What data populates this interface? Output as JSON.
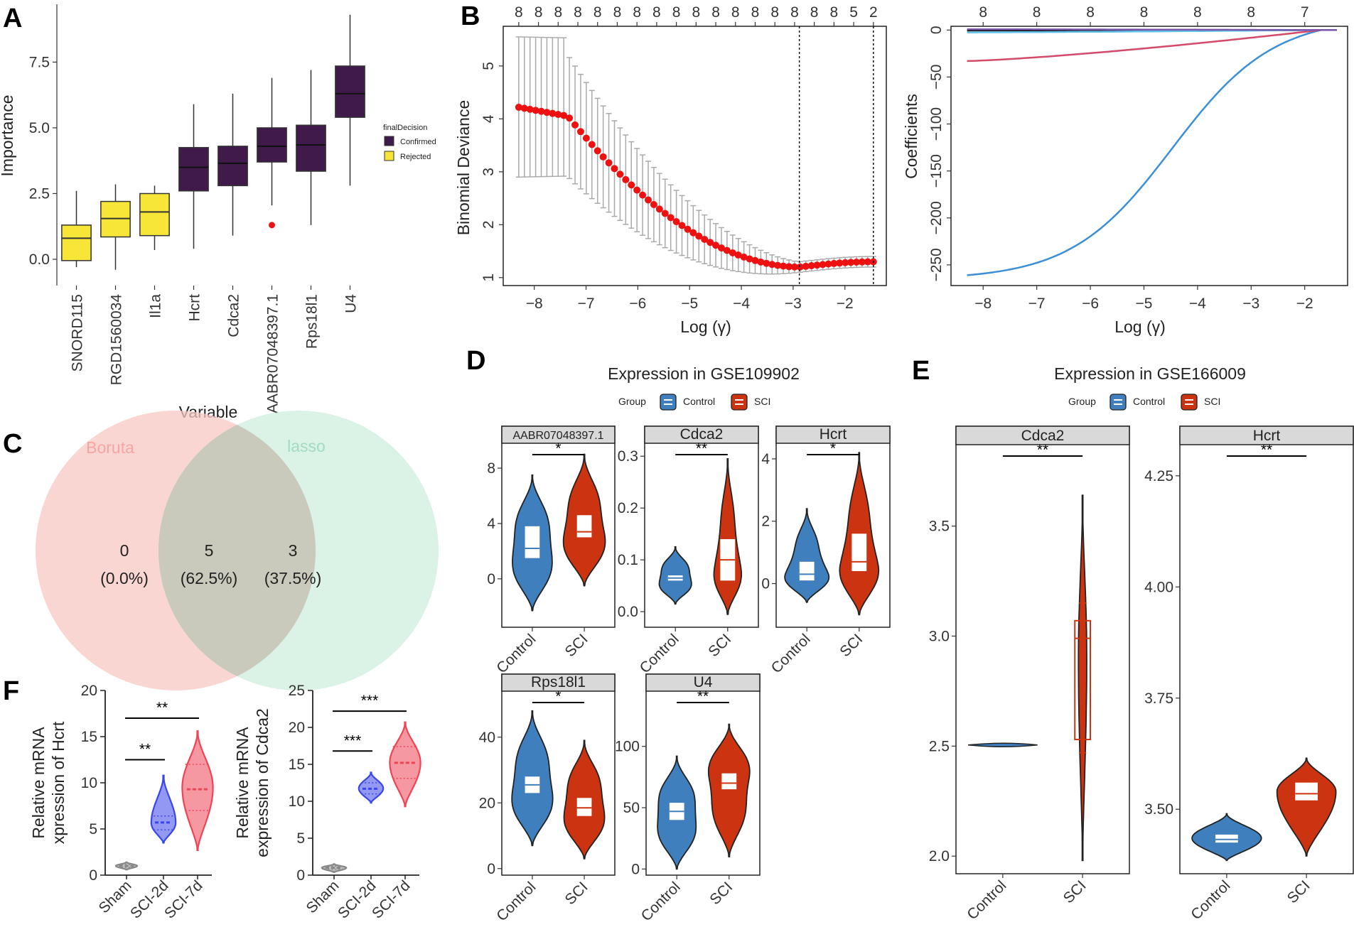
{
  "figure": {
    "panel_letters": [
      "A",
      "B",
      "C",
      "D",
      "E",
      "F"
    ]
  },
  "colors": {
    "confirmed": "#3f1a4a",
    "rejected": "#f7e637",
    "control": "#3f7fbd",
    "sci": "#cc3311",
    "deviance_point": "#ee1111",
    "errorbar": "#aaaaaa",
    "boruta": "#f8c8c4",
    "lasso": "#cfeedd",
    "f_sham": "#888888",
    "f_2d": "#3a46e8",
    "f_7d": "#ee4455",
    "coef_blue": "#3a8fd8",
    "coef_pink": "#d34a6a",
    "coef_black": "#111111",
    "coef_cyan": "#60c0e8",
    "coef_purple": "#7a55a8"
  },
  "chart_data": [
    {
      "id": "A",
      "type": "box",
      "xlabel": "Variable",
      "ylabel": "Importance",
      "ylim": [
        -1.0,
        9.7
      ],
      "yticks": [
        "0.0",
        "2.5",
        "5.0",
        "7.5"
      ],
      "ytick_values": [
        0.0,
        2.5,
        5.0,
        7.5
      ],
      "legend_title": "finalDecision",
      "legend": [
        "Confirmed",
        "Rejected"
      ],
      "boxes": [
        {
          "label": "SNORD115",
          "decision": "Rejected",
          "min": -0.3,
          "q1": -0.05,
          "median": 0.8,
          "q3": 1.3,
          "max": 2.6,
          "outliers": []
        },
        {
          "label": "RGD1560034",
          "decision": "Rejected",
          "min": -0.4,
          "q1": 0.85,
          "median": 1.55,
          "q3": 2.2,
          "max": 2.85,
          "outliers": []
        },
        {
          "label": "Il1a",
          "decision": "Rejected",
          "min": 0.35,
          "q1": 0.9,
          "median": 1.8,
          "q3": 2.5,
          "max": 2.8,
          "outliers": []
        },
        {
          "label": "Hcrt",
          "decision": "Confirmed",
          "min": 0.4,
          "q1": 2.6,
          "median": 3.5,
          "q3": 4.25,
          "max": 5.9,
          "outliers": []
        },
        {
          "label": "Cdca2",
          "decision": "Confirmed",
          "min": 0.9,
          "q1": 2.8,
          "median": 3.65,
          "q3": 4.3,
          "max": 6.3,
          "outliers": []
        },
        {
          "label": "AABR07048397.1",
          "decision": "Confirmed",
          "min": 2.05,
          "q1": 3.7,
          "median": 4.3,
          "q3": 5.0,
          "max": 6.9,
          "outliers": [
            1.3
          ]
        },
        {
          "label": "Rps18l1",
          "decision": "Confirmed",
          "min": 1.3,
          "q1": 3.35,
          "median": 4.35,
          "q3": 5.1,
          "max": 7.2,
          "outliers": []
        },
        {
          "label": "U4",
          "decision": "Confirmed",
          "min": 2.8,
          "q1": 5.4,
          "median": 6.3,
          "q3": 7.35,
          "max": 9.3,
          "outliers": []
        }
      ]
    },
    {
      "id": "B-left",
      "type": "line",
      "xlabel": "Log (γ)",
      "ylabel": "Binomial Deviance",
      "xlim": [
        -8.6,
        -1.2
      ],
      "ylim": [
        0.85,
        5.75
      ],
      "xticks": [
        "−8",
        "−7",
        "−6",
        "−5",
        "−4",
        "−3",
        "−2"
      ],
      "xtick_values": [
        -8,
        -7,
        -6,
        -5,
        -4,
        -3,
        -2
      ],
      "yticks": [
        "1",
        "2",
        "3",
        "4",
        "5"
      ],
      "ytick_values": [
        1,
        2,
        3,
        4,
        5
      ],
      "top_ticks": [
        "8",
        "8",
        "8",
        "8",
        "8",
        "8",
        "8",
        "8",
        "8",
        "8",
        "8",
        "8",
        "8",
        "8",
        "8",
        "8",
        "8",
        "5",
        "2"
      ],
      "vlines": [
        -2.88,
        -1.45
      ],
      "curve": {
        "x_start": -8.3,
        "x_end": -1.45,
        "n": 64,
        "plateau_end": -7.35,
        "plateau_start_value": 4.22,
        "plateau_end_value": 4.05,
        "min_x": -2.88,
        "min_value": 1.2,
        "end_value": 1.3,
        "err_start_upper": 5.55,
        "err_start_lower": 2.9
      }
    },
    {
      "id": "B-right",
      "type": "line",
      "xlabel": "Log (γ)",
      "ylabel": "Coefficients",
      "xlim": [
        -8.6,
        -1.2
      ],
      "ylim": [
        -272,
        4
      ],
      "xticks": [
        "−8",
        "−7",
        "−6",
        "−5",
        "−4",
        "−3",
        "−2"
      ],
      "xtick_values": [
        -8,
        -7,
        -6,
        -5,
        -4,
        -3,
        -2
      ],
      "yticks": [
        "0",
        "−50",
        "−100",
        "−150",
        "−200",
        "−250"
      ],
      "ytick_values": [
        0,
        -50,
        -100,
        -150,
        -200,
        -250
      ],
      "top_ticks": [
        "8",
        "8",
        "8",
        "8",
        "8",
        "8",
        "7"
      ],
      "top_tick_values": [
        -8,
        -7,
        -6,
        -5,
        -4,
        -3,
        -2
      ],
      "series": [
        {
          "name": "blue",
          "start": -261,
          "shape": "sigmoid"
        },
        {
          "name": "pink",
          "start": -33,
          "shape": "linear"
        },
        {
          "name": "black",
          "start": -0.5,
          "shape": "linear"
        },
        {
          "name": "cyan",
          "start": -2.5,
          "shape": "linear"
        },
        {
          "name": "purple",
          "start": 0.8,
          "shape": "linear"
        }
      ]
    },
    {
      "id": "C",
      "type": "venn",
      "sets": [
        {
          "name": "Boruta",
          "only_count": "0",
          "only_pct": "(0.0%)"
        },
        {
          "name": "lasso",
          "only_count": "3",
          "only_pct": "(37.5%)"
        }
      ],
      "intersection": {
        "count": "5",
        "pct": "(62.5%)"
      }
    },
    {
      "id": "D",
      "type": "violin",
      "title": "Expression in GSE109902",
      "legend_title": "Group",
      "legend": [
        "Control",
        "SCI"
      ],
      "categories": [
        "Control",
        "SCI"
      ],
      "facets": [
        {
          "name": "AABR07048397.1",
          "sig": "*",
          "ylim": [
            -3.5,
            9.8
          ],
          "yticks": [
            "0",
            "4",
            "8"
          ],
          "ytick_values": [
            0,
            4,
            8
          ],
          "groups": [
            {
              "min": -2.3,
              "max": 7.5,
              "mode": 2.2,
              "q1": 1.5,
              "median": 2.2,
              "q3": 3.8,
              "width": 1.0
            },
            {
              "min": -0.5,
              "max": 9.0,
              "mode": 3.5,
              "q1": 3.0,
              "median": 3.4,
              "q3": 4.6,
              "width": 1.0
            }
          ]
        },
        {
          "name": "Cdca2",
          "sig": "**",
          "ylim": [
            -0.03,
            0.325
          ],
          "yticks": [
            "0.0",
            "0.1",
            "0.2",
            "0.3"
          ],
          "ytick_values": [
            0.0,
            0.1,
            0.2,
            0.3
          ],
          "groups": [
            {
              "min": 0.015,
              "max": 0.125,
              "mode": 0.065,
              "q1": 0.06,
              "median": 0.065,
              "q3": 0.07,
              "width": 0.8
            },
            {
              "min": -0.005,
              "max": 0.295,
              "mode": 0.08,
              "q1": 0.06,
              "median": 0.1,
              "q3": 0.14,
              "width": 0.55
            }
          ]
        },
        {
          "name": "Hcrt",
          "sig": "*",
          "ylim": [
            -1.4,
            4.5
          ],
          "yticks": [
            "0",
            "2",
            "4"
          ],
          "ytick_values": [
            0,
            2,
            4
          ],
          "groups": [
            {
              "min": -0.6,
              "max": 2.4,
              "mode": 0.3,
              "q1": 0.1,
              "median": 0.3,
              "q3": 0.7,
              "width": 0.9
            },
            {
              "min": -1.0,
              "max": 4.2,
              "mode": 0.6,
              "q1": 0.4,
              "median": 0.7,
              "q3": 1.6,
              "width": 0.8
            }
          ]
        },
        {
          "name": "Rps18l1",
          "sig": "*",
          "ylim": [
            -2,
            54
          ],
          "yticks": [
            "0",
            "20",
            "40"
          ],
          "ytick_values": [
            0,
            20,
            40
          ],
          "groups": [
            {
              "min": 7,
              "max": 48,
              "mode": 25,
              "q1": 23,
              "median": 25.5,
              "q3": 28,
              "width": 1.0
            },
            {
              "min": 3,
              "max": 39,
              "mode": 19,
              "q1": 16,
              "median": 18.5,
              "q3": 21.5,
              "width": 1.0
            }
          ]
        },
        {
          "name": "U4",
          "sig": "**",
          "ylim": [
            -5,
            145
          ],
          "yticks": [
            "0",
            "50",
            "100"
          ],
          "ytick_values": [
            0,
            50,
            100
          ],
          "groups": [
            {
              "min": 0,
              "max": 92,
              "mode": 45,
              "q1": 40,
              "median": 47,
              "q3": 54,
              "width": 1.0
            },
            {
              "min": 10,
              "max": 118,
              "mode": 72,
              "q1": 65,
              "median": 70,
              "q3": 78,
              "width": 1.0
            }
          ]
        }
      ]
    },
    {
      "id": "E",
      "type": "violin",
      "title": "Expression in GSE166009",
      "legend_title": "Group",
      "legend": [
        "Control",
        "SCI"
      ],
      "categories": [
        "Control",
        "SCI"
      ],
      "facets": [
        {
          "name": "Cdca2",
          "sig": "**",
          "ylim": [
            1.92,
            3.87
          ],
          "yticks": [
            "2.0",
            "2.5",
            "3.0",
            "3.5"
          ],
          "ytick_values": [
            2.0,
            2.5,
            3.0,
            3.5
          ],
          "groups": [
            {
              "min": 2.48,
              "max": 2.53,
              "mode": 2.505,
              "q1": 2.505,
              "median": 2.505,
              "q3": 2.505,
              "width": 1.0,
              "flat": true
            },
            {
              "min": 1.98,
              "max": 3.64,
              "mode": 2.9,
              "q1": 2.53,
              "median": 2.99,
              "q3": 3.07,
              "width": 0.12,
              "open_box": true,
              "whisker_min": 2.47,
              "whisker_max": 3.15
            }
          ]
        },
        {
          "name": "Hcrt",
          "sig": "**",
          "ylim": [
            3.355,
            4.32
          ],
          "yticks": [
            "3.50",
            "3.75",
            "4.00",
            "4.25"
          ],
          "ytick_values": [
            3.5,
            3.75,
            4.0,
            4.25
          ],
          "groups": [
            {
              "min": 3.385,
              "max": 3.49,
              "mode": 3.435,
              "q1": 3.425,
              "median": 3.432,
              "q3": 3.443,
              "width": 1.0
            },
            {
              "min": 3.395,
              "max": 3.615,
              "mode": 3.54,
              "q1": 3.52,
              "median": 3.535,
              "q3": 3.56,
              "width": 0.85
            }
          ]
        }
      ]
    },
    {
      "id": "F",
      "type": "violin",
      "panels": [
        {
          "ylabel_line1": "Relative mRNA",
          "ylabel_line2": "xpression of Hcrt",
          "ylim": [
            0,
            20
          ],
          "yticks": [
            "0",
            "5",
            "10",
            "15",
            "20"
          ],
          "ytick_values": [
            0,
            5,
            10,
            15,
            20
          ],
          "categories": [
            "Sham",
            "SCI-2d",
            "SCI-7d"
          ],
          "groups": [
            {
              "min": 0.6,
              "max": 1.4,
              "median": 1.0,
              "q1": 0.85,
              "q3": 1.15,
              "width": 0.5
            },
            {
              "min": 3.5,
              "max": 10.8,
              "median": 5.7,
              "q1": 4.9,
              "q3": 6.4,
              "width": 0.6
            },
            {
              "min": 2.7,
              "max": 15.6,
              "median": 9.3,
              "q1": 7.0,
              "q3": 12.0,
              "width": 0.8
            }
          ],
          "sig": [
            {
              "from": 0,
              "to": 1,
              "label": "**",
              "y": 12.5
            },
            {
              "from": 0,
              "to": 2,
              "label": "**",
              "y": 17.0
            }
          ]
        },
        {
          "ylabel_line1": "Relative mRNA",
          "ylabel_line2": "expression of Cdca2",
          "ylim": [
            0,
            25
          ],
          "yticks": [
            "0",
            "5",
            "10",
            "15",
            "20",
            "25"
          ],
          "ytick_values": [
            0,
            5,
            10,
            15,
            20,
            25
          ],
          "categories": [
            "Sham",
            "SCI-2d",
            "SCI-7d"
          ],
          "groups": [
            {
              "min": 0.4,
              "max": 1.5,
              "median": 1.0,
              "q1": 0.8,
              "q3": 1.2,
              "width": 0.6
            },
            {
              "min": 9.8,
              "max": 13.9,
              "median": 11.7,
              "q1": 11.0,
              "q3": 12.5,
              "width": 0.6
            },
            {
              "min": 9.3,
              "max": 20.7,
              "median": 15.2,
              "q1": 13.1,
              "q3": 17.4,
              "width": 0.8
            }
          ],
          "sig": [
            {
              "from": 0,
              "to": 1,
              "label": "***",
              "y": 16.8
            },
            {
              "from": 0,
              "to": 2,
              "label": "***",
              "y": 22.2
            }
          ]
        }
      ]
    }
  ]
}
